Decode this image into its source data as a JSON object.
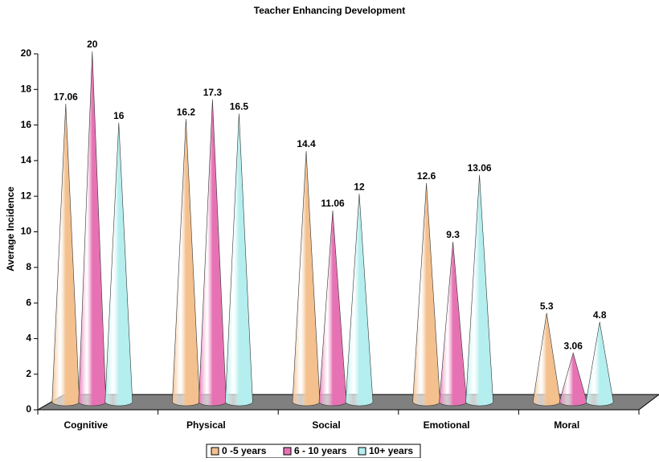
{
  "chart_data": {
    "type": "cone",
    "title": "Teacher Enhancing Development",
    "y_label": "Average Incidence",
    "categories": [
      "Cognitive",
      "Physical",
      "Social",
      "Emotional",
      "Moral"
    ],
    "series": [
      {
        "name": "0 -5 years",
        "color": "#f3c08e",
        "values": [
          17.06,
          16.2,
          14.4,
          12.6,
          5.3
        ]
      },
      {
        "name": "6 - 10 years",
        "color": "#e672b3",
        "values": [
          20,
          17.3,
          11.06,
          9.3,
          3.06
        ]
      },
      {
        "name": "10+ years",
        "color": "#b4eeee",
        "values": [
          16,
          16.5,
          12,
          13.06,
          4.8
        ]
      }
    ],
    "ylim": [
      0,
      20
    ],
    "yticks": [
      0,
      2,
      4,
      6,
      8,
      10,
      12,
      14,
      16,
      18,
      20
    ],
    "legend": "bottom"
  }
}
